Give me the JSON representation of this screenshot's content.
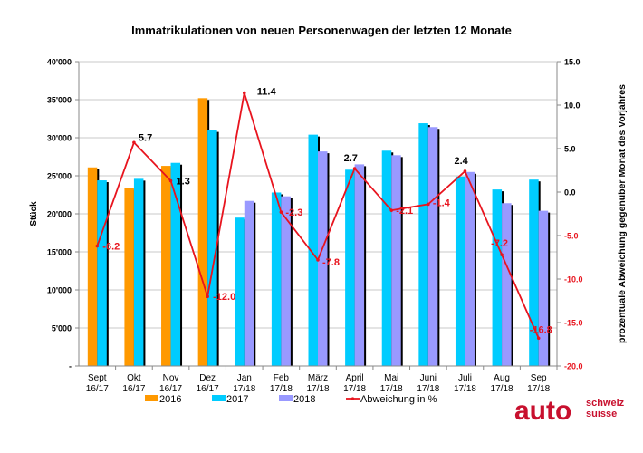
{
  "chart_data": {
    "type": "bar+line",
    "title": "Immatrikulationen von neuen Personenwagen der letzten 12 Monate",
    "ylabel": "Stück",
    "y2label": "prozentuale Abweichung gegenüber Monat des Vorjahres",
    "ylim": [
      0,
      40000
    ],
    "y2lim": [
      -20,
      15
    ],
    "yticks": [
      "-",
      "5'000",
      "10'000",
      "15'000",
      "20'000",
      "25'000",
      "30'000",
      "35'000",
      "40'000"
    ],
    "y2ticks": [
      "-20.0",
      "-15.0",
      "-10.0",
      "-5.0",
      "0.0",
      "5.0",
      "10.0",
      "15.0"
    ],
    "grid": true,
    "legend_position": "bottom",
    "categories": [
      [
        "Sept",
        "16/17"
      ],
      [
        "Okt",
        "16/17"
      ],
      [
        "Nov",
        "16/17"
      ],
      [
        "Dez",
        "16/17"
      ],
      [
        "Jan",
        "17/18"
      ],
      [
        "Feb",
        "17/18"
      ],
      [
        "März",
        "17/18"
      ],
      [
        "April",
        "17/18"
      ],
      [
        "Mai",
        "17/18"
      ],
      [
        "Juni",
        "17/18"
      ],
      [
        "Juli",
        "17/18"
      ],
      [
        "Aug",
        "17/18"
      ],
      [
        "Sep",
        "17/18"
      ]
    ],
    "series": [
      {
        "name": "2016",
        "color": "#FF9900",
        "axis": "left",
        "values": [
          26100,
          23400,
          26300,
          35200,
          null,
          null,
          null,
          null,
          null,
          null,
          null,
          null,
          null
        ]
      },
      {
        "name": "2017",
        "color": "#00CCFF",
        "axis": "left",
        "values": [
          24400,
          24600,
          26700,
          31000,
          19500,
          22800,
          30400,
          25800,
          28300,
          31900,
          24900,
          23200,
          24500
        ]
      },
      {
        "name": "2018",
        "color": "#9999FF",
        "axis": "left",
        "values": [
          null,
          null,
          null,
          null,
          21700,
          22300,
          28200,
          26500,
          27700,
          31400,
          25500,
          21400,
          20400
        ]
      },
      {
        "name": "Abweichung in %",
        "color": "#E8141E",
        "axis": "right",
        "type": "line",
        "values": [
          -6.2,
          5.7,
          1.3,
          -12.0,
          11.4,
          -2.3,
          -7.8,
          2.7,
          -2.1,
          -1.4,
          2.4,
          -7.2,
          -16.8
        ],
        "labels": [
          "-6.2",
          "5.7",
          "1.3",
          "-12.0",
          "11.4",
          "-2.3",
          "-7.8",
          "2.7",
          "-2.1",
          "-1.4",
          "2.4",
          "-7.2",
          "-16.8"
        ]
      }
    ]
  },
  "logo": {
    "text": "auto",
    "sub1": "schweiz",
    "sub2": "suisse",
    "color": "#C8102E"
  }
}
